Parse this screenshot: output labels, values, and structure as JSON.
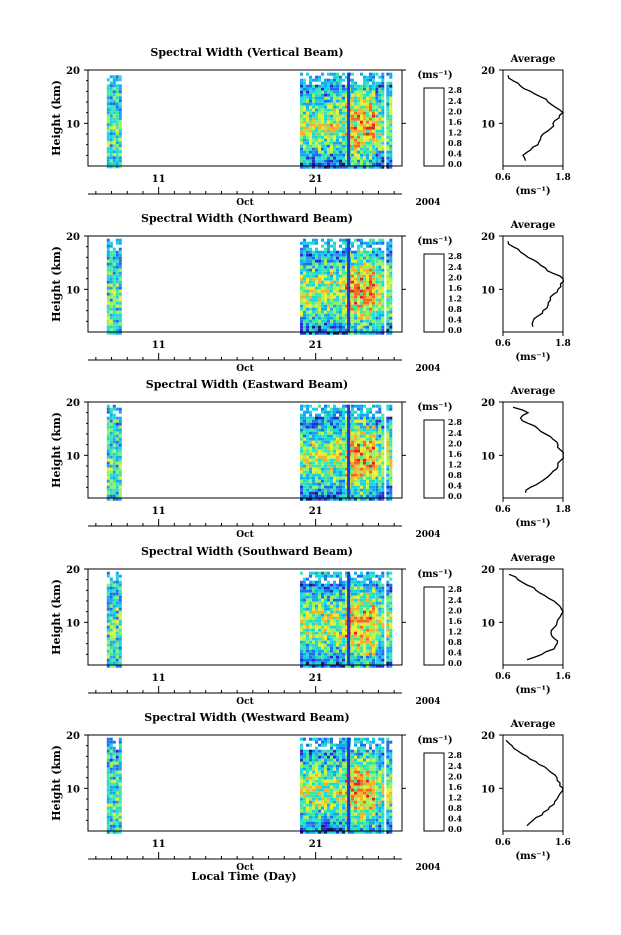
{
  "colorbar": {
    "unit": "(ms⁻¹)",
    "ticks": [
      "0.0",
      "0.4",
      "0.8",
      "1.2",
      "1.6",
      "2.0",
      "2.4",
      "2.8"
    ],
    "colors": [
      "#1a1a66",
      "#2b2bd6",
      "#1e6ff0",
      "#14a8f0",
      "#18d7e0",
      "#3ee8a0",
      "#9cf05a",
      "#e8f030",
      "#f7b02a",
      "#f26a22",
      "#e0281e"
    ]
  },
  "common": {
    "xlabel": "Local Time (Day)",
    "month": "Oct",
    "year": "2004",
    "x_ticks": [
      "11",
      "21"
    ],
    "y_label": "Height (km)",
    "y_ticks": [
      "20",
      "10"
    ],
    "avg_title": "Average"
  },
  "chart_data": [
    {
      "type": "heatmap",
      "title": "Spectral Width (Vertical Beam)",
      "xlabel": "Local Time (Day)",
      "ylabel": "Height (km)",
      "x_range_days": [
        6.5,
        26.5
      ],
      "y_range_km": [
        2,
        20
      ],
      "data_blocks_days": [
        [
          7.7,
          8.5
        ],
        [
          20.0,
          24.6
        ],
        [
          24.8,
          25.3
        ],
        [
          25.5,
          25.8
        ]
      ],
      "colorbar_range": [
        0.0,
        2.8
      ],
      "colorbar_unit": "ms-1",
      "average_profile": {
        "title": "Average",
        "xlabel": "(ms-1)",
        "x_range": [
          0.6,
          1.8
        ],
        "x_ticks": [
          0.6,
          1.8
        ],
        "height_km": [
          3,
          4,
          5,
          6,
          7,
          8,
          9,
          10,
          11,
          12,
          13,
          14,
          15,
          16,
          17,
          18,
          19
        ],
        "values": [
          1.05,
          1.0,
          1.15,
          1.3,
          1.35,
          1.4,
          1.55,
          1.6,
          1.72,
          1.8,
          1.65,
          1.5,
          1.35,
          1.15,
          0.95,
          0.8,
          0.7
        ]
      }
    },
    {
      "type": "heatmap",
      "title": "Spectral Width (Northward Beam)",
      "xlabel": "Local Time (Day)",
      "ylabel": "Height (km)",
      "x_range_days": [
        6.5,
        26.5
      ],
      "y_range_km": [
        2,
        20
      ],
      "data_blocks_days": [
        [
          7.7,
          8.5
        ],
        [
          20.0,
          24.6
        ],
        [
          24.8,
          25.3
        ],
        [
          25.5,
          25.8
        ]
      ],
      "colorbar_range": [
        0.0,
        2.8
      ],
      "colorbar_unit": "ms-1",
      "average_profile": {
        "title": "Average",
        "xlabel": "(ms-1)",
        "x_range": [
          0.6,
          1.8
        ],
        "x_ticks": [
          0.6,
          1.8
        ],
        "height_km": [
          3,
          4,
          5,
          6,
          7,
          8,
          9,
          10,
          11,
          12,
          13,
          14,
          15,
          16,
          17,
          18,
          19
        ],
        "values": [
          1.2,
          1.2,
          1.3,
          1.4,
          1.5,
          1.55,
          1.6,
          1.7,
          1.75,
          1.8,
          1.6,
          1.45,
          1.3,
          1.1,
          0.95,
          0.8,
          0.7
        ]
      }
    },
    {
      "type": "heatmap",
      "title": "Spectral Width (Eastward Beam)",
      "xlabel": "Local Time (Day)",
      "ylabel": "Height (km)",
      "x_range_days": [
        6.5,
        26.5
      ],
      "y_range_km": [
        2,
        20
      ],
      "data_blocks_days": [
        [
          7.7,
          8.5
        ],
        [
          20.0,
          24.6
        ],
        [
          24.8,
          25.3
        ],
        [
          25.5,
          25.8
        ]
      ],
      "colorbar_range": [
        0.0,
        2.8
      ],
      "colorbar_unit": "ms-1",
      "average_profile": {
        "title": "Average",
        "xlabel": "(ms-1)",
        "x_range": [
          0.6,
          1.8
        ],
        "x_ticks": [
          0.6,
          1.8
        ],
        "height_km": [
          3,
          4,
          5,
          6,
          7,
          8,
          9,
          10,
          11,
          12,
          13,
          14,
          15,
          16,
          17,
          18,
          19
        ],
        "values": [
          1.05,
          1.15,
          1.35,
          1.5,
          1.6,
          1.7,
          1.75,
          1.8,
          1.75,
          1.7,
          1.6,
          1.45,
          1.3,
          1.1,
          0.95,
          1.1,
          0.8
        ]
      }
    },
    {
      "type": "heatmap",
      "title": "Spectral Width (Southward Beam)",
      "xlabel": "Local Time (Day)",
      "ylabel": "Height (km)",
      "x_range_days": [
        6.5,
        26.5
      ],
      "y_range_km": [
        2,
        20
      ],
      "data_blocks_days": [
        [
          7.7,
          8.5
        ],
        [
          20.0,
          24.6
        ],
        [
          24.8,
          25.3
        ],
        [
          25.5,
          25.8
        ]
      ],
      "colorbar_range": [
        0.0,
        2.8
      ],
      "colorbar_unit": "ms-1",
      "average_profile": {
        "title": "Average",
        "xlabel": "(ms-1)",
        "x_range": [
          0.6,
          1.6
        ],
        "x_ticks": [
          0.6,
          1.6
        ],
        "height_km": [
          3,
          4,
          5,
          6,
          7,
          8,
          9,
          10,
          11,
          12,
          13,
          14,
          15,
          16,
          17,
          18,
          19
        ],
        "values": [
          1.0,
          1.25,
          1.45,
          1.5,
          1.45,
          1.4,
          1.45,
          1.5,
          1.55,
          1.6,
          1.55,
          1.45,
          1.3,
          1.15,
          1.0,
          0.85,
          0.7
        ]
      }
    },
    {
      "type": "heatmap",
      "title": "Spectral Width (Westward Beam)",
      "xlabel": "Local Time (Day)",
      "ylabel": "Height (km)",
      "x_range_days": [
        6.5,
        26.5
      ],
      "y_range_km": [
        2,
        20
      ],
      "data_blocks_days": [
        [
          7.7,
          8.5
        ],
        [
          20.0,
          24.6
        ],
        [
          24.8,
          25.3
        ],
        [
          25.5,
          25.8
        ]
      ],
      "colorbar_range": [
        0.0,
        2.8
      ],
      "colorbar_unit": "ms-1",
      "average_profile": {
        "title": "Average",
        "xlabel": "(ms-1)",
        "x_range": [
          0.6,
          1.6
        ],
        "x_ticks": [
          0.6,
          1.6
        ],
        "height_km": [
          3,
          4,
          5,
          6,
          7,
          8,
          9,
          10,
          11,
          12,
          13,
          14,
          15,
          16,
          17,
          18,
          19
        ],
        "values": [
          1.0,
          1.1,
          1.25,
          1.35,
          1.45,
          1.5,
          1.55,
          1.6,
          1.55,
          1.5,
          1.4,
          1.3,
          1.15,
          1.0,
          0.85,
          0.75,
          0.65
        ]
      }
    }
  ]
}
